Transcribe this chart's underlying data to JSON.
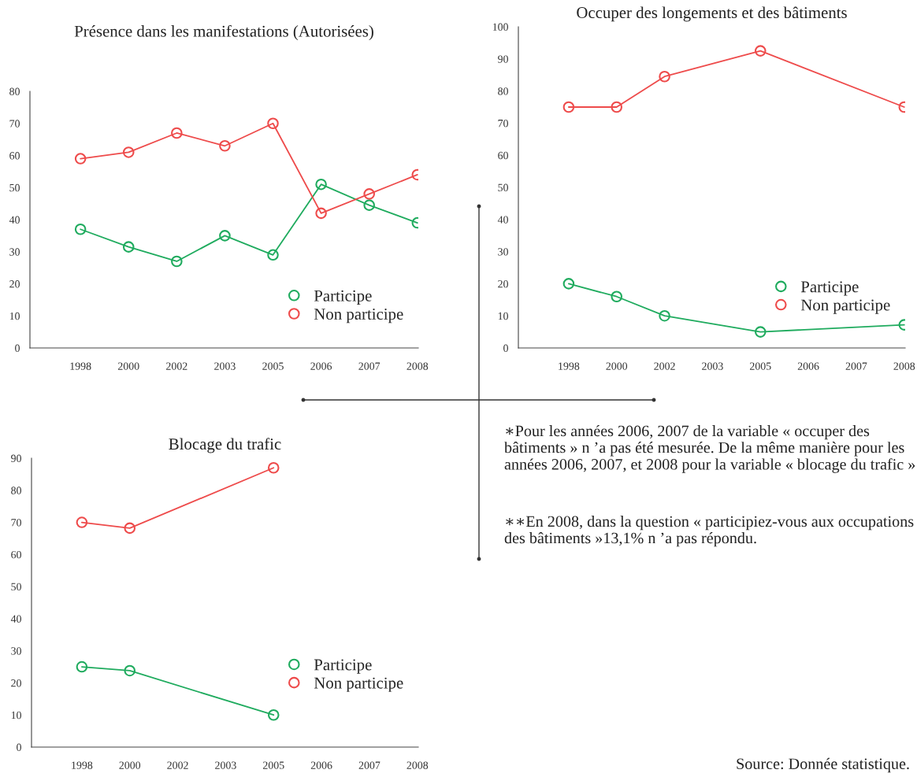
{
  "chart_data": [
    {
      "type": "line",
      "title": "Présence dans les manifestations (Autorisées)",
      "categories": [
        "1998",
        "2000",
        "2002",
        "2003",
        "2005",
        "2006",
        "2007",
        "2008"
      ],
      "series": [
        {
          "name": "Participe",
          "color": "#1fab5e",
          "values": [
            37,
            31.5,
            27,
            35,
            29,
            51,
            44.5,
            39
          ]
        },
        {
          "name": "Non participe",
          "color": "#ee4b4b",
          "values": [
            59,
            61,
            67,
            63,
            70,
            42,
            48,
            54
          ]
        }
      ],
      "ylim": [
        0,
        80
      ],
      "yticks": [
        0,
        10,
        20,
        30,
        40,
        50,
        60,
        70,
        80
      ],
      "marker": "circle",
      "line_style": "solid",
      "grid": false,
      "legend": "bottom right"
    },
    {
      "type": "line",
      "title": "Occuper des longements et des bâtiments",
      "categories": [
        "1998",
        "2000",
        "2002",
        "2003",
        "2005",
        "2006",
        "2007",
        "2008"
      ],
      "series": [
        {
          "name": "Participe",
          "color": "#1fab5e",
          "values": [
            20,
            16,
            10,
            null,
            5,
            null,
            null,
            7.2
          ]
        },
        {
          "name": "Non participe",
          "color": "#ee4b4b",
          "values": [
            75,
            75,
            84.5,
            null,
            92.5,
            null,
            null,
            75
          ]
        }
      ],
      "ylim": [
        0,
        100
      ],
      "yticks": [
        0,
        10,
        20,
        30,
        40,
        50,
        60,
        70,
        80,
        90,
        100
      ],
      "marker": "circle",
      "line_style": "solid",
      "grid": false,
      "legend": "bottom right"
    },
    {
      "type": "line",
      "title": "Blocage du trafic",
      "categories": [
        "1998",
        "2000",
        "2002",
        "2003",
        "2005",
        "2006",
        "2007",
        "2008"
      ],
      "series": [
        {
          "name": "Participe",
          "color": "#1fab5e",
          "values": [
            25,
            23.8,
            null,
            null,
            10,
            null,
            null,
            null
          ]
        },
        {
          "name": "Non participe",
          "color": "#ee4b4b",
          "values": [
            70,
            68.2,
            null,
            null,
            87,
            null,
            null,
            null
          ]
        }
      ],
      "ylim": [
        0,
        90
      ],
      "yticks": [
        0,
        10,
        20,
        30,
        40,
        50,
        60,
        70,
        80,
        90
      ],
      "marker": "circle",
      "line_style": "solid",
      "grid": false,
      "legend": "bottom right",
      "annotations": [
        "∗Pour les années 2006, 2007 de la variable « occuper des bâtiments » n ’a pas été mesurée. De la même manière pour les années 2006, 2007, et 2008 pour la variable « blocage du trafic »",
        "∗∗En 2008, dans la question « participiez-vous aux occupations des bâtiments »13,1% n ’a pas répondu.",
        "Source: Donnée statistique."
      ]
    }
  ]
}
